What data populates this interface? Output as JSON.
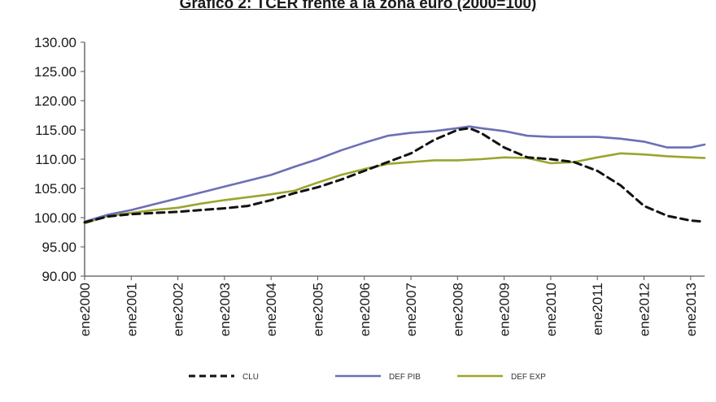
{
  "chart_data": {
    "type": "line",
    "title": "Gráfico 2: TCER frente a la zona euro (2000=100)",
    "xlabel": "",
    "ylabel": "",
    "ylim": [
      90,
      130
    ],
    "y_ticks": [
      "90.00",
      "95.00",
      "100.00",
      "105.00",
      "110.00",
      "115.00",
      "120.00",
      "125.00",
      "130.00"
    ],
    "x_ticks": [
      "ene2000",
      "ene2001",
      "ene2002",
      "ene2003",
      "ene2004",
      "ene2005",
      "ene2006",
      "ene2007",
      "ene2008",
      "ene2009",
      "ene2010",
      "ene2011",
      "ene2012",
      "ene2013"
    ],
    "grid": false,
    "legend_position": "bottom",
    "x": [
      2000.0,
      2000.5,
      2001.0,
      2001.5,
      2002.0,
      2002.5,
      2003.0,
      2003.5,
      2004.0,
      2004.5,
      2005.0,
      2005.5,
      2006.0,
      2006.5,
      2007.0,
      2007.5,
      2008.0,
      2008.25,
      2008.5,
      2009.0,
      2009.5,
      2010.0,
      2010.5,
      2011.0,
      2011.5,
      2012.0,
      2012.5,
      2013.0,
      2013.3
    ],
    "series": [
      {
        "name": "CLU",
        "color": "#111111",
        "dash": "dashed",
        "values": [
          99.2,
          100.2,
          100.6,
          100.8,
          101.0,
          101.3,
          101.6,
          102.0,
          103.0,
          104.2,
          105.2,
          106.5,
          108.0,
          109.5,
          111.0,
          113.3,
          115.0,
          115.3,
          114.5,
          112.0,
          110.3,
          110.0,
          109.5,
          108.0,
          105.5,
          102.0,
          100.3,
          99.5,
          99.3
        ]
      },
      {
        "name": "DEF PIB",
        "color": "#6b6fb5",
        "dash": "solid",
        "values": [
          99.3,
          100.5,
          101.3,
          102.3,
          103.3,
          104.3,
          105.3,
          106.3,
          107.3,
          108.7,
          110.0,
          111.5,
          112.8,
          114.0,
          114.5,
          114.8,
          115.3,
          115.6,
          115.3,
          114.8,
          114.0,
          113.8,
          113.8,
          113.8,
          113.5,
          113.0,
          112.0,
          112.0,
          112.5
        ]
      },
      {
        "name": "DEF EXP",
        "color": "#9aa52e",
        "dash": "solid",
        "values": [
          99.0,
          100.3,
          100.8,
          101.3,
          101.7,
          102.4,
          103.0,
          103.5,
          104.0,
          104.6,
          106.0,
          107.3,
          108.3,
          109.2,
          109.5,
          109.8,
          109.8,
          109.9,
          110.0,
          110.3,
          110.2,
          109.3,
          109.5,
          110.3,
          111.0,
          110.8,
          110.5,
          110.3,
          110.2
        ]
      }
    ]
  }
}
